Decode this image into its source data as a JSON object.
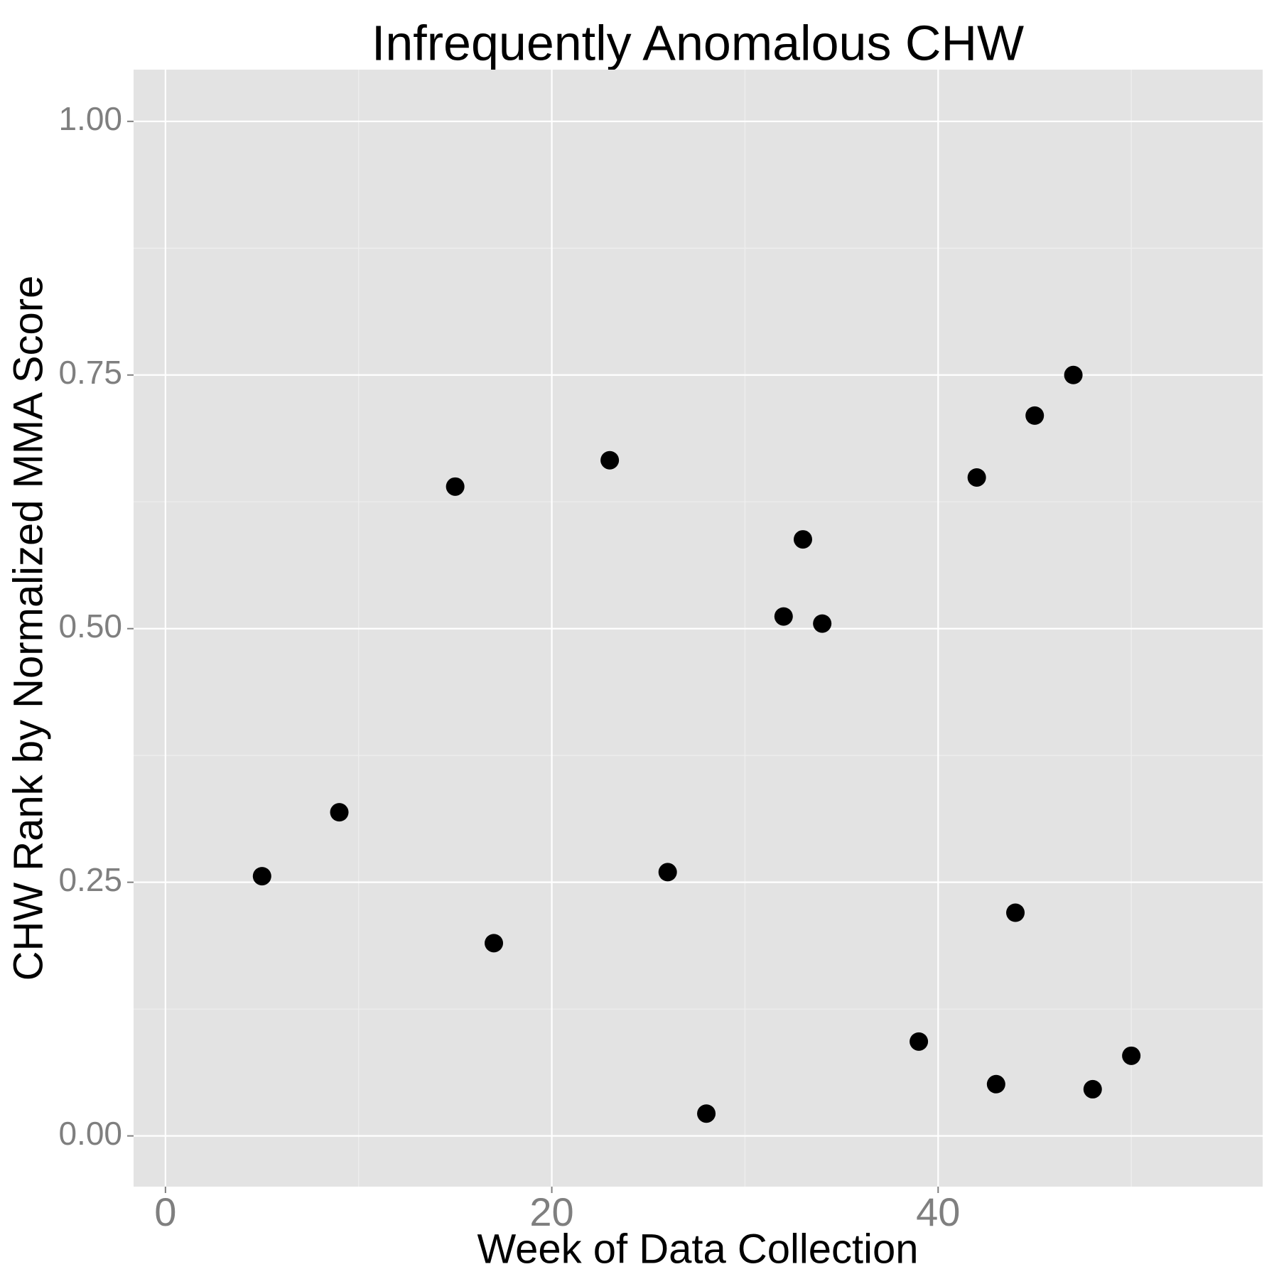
{
  "chart_data": {
    "type": "scatter",
    "title": "Infrequently Anomalous CHW",
    "x_label": "Week of Data Collection",
    "y_label": "CHW Rank by Normalized MMA Score",
    "x": [
      5,
      9,
      15,
      17,
      23,
      26,
      28,
      32,
      33,
      34,
      39,
      42,
      43,
      44,
      45,
      47,
      48,
      50
    ],
    "values": [
      0.256,
      0.319,
      0.64,
      0.19,
      0.666,
      0.26,
      0.022,
      0.512,
      0.588,
      0.505,
      0.093,
      0.649,
      0.051,
      0.22,
      0.71,
      0.75,
      0.046,
      0.079
    ],
    "color": "#000000",
    "xlim": [
      -1.65,
      56.8
    ],
    "ylim": [
      -0.05,
      1.051
    ],
    "xticks": [
      0,
      20,
      40
    ],
    "yticks": [
      {
        "value": 0,
        "label": "0.00"
      },
      {
        "value": 0.25,
        "label": "0.25"
      },
      {
        "value": 0.5,
        "label": "0.50"
      },
      {
        "value": 0.75,
        "label": "0.75"
      },
      {
        "value": 1,
        "label": "1.00"
      }
    ],
    "x_minor_ticks": [
      10,
      30,
      50
    ],
    "y_minor_ticks": [
      0.125,
      0.375,
      0.625,
      0.875
    ],
    "grid": true
  }
}
